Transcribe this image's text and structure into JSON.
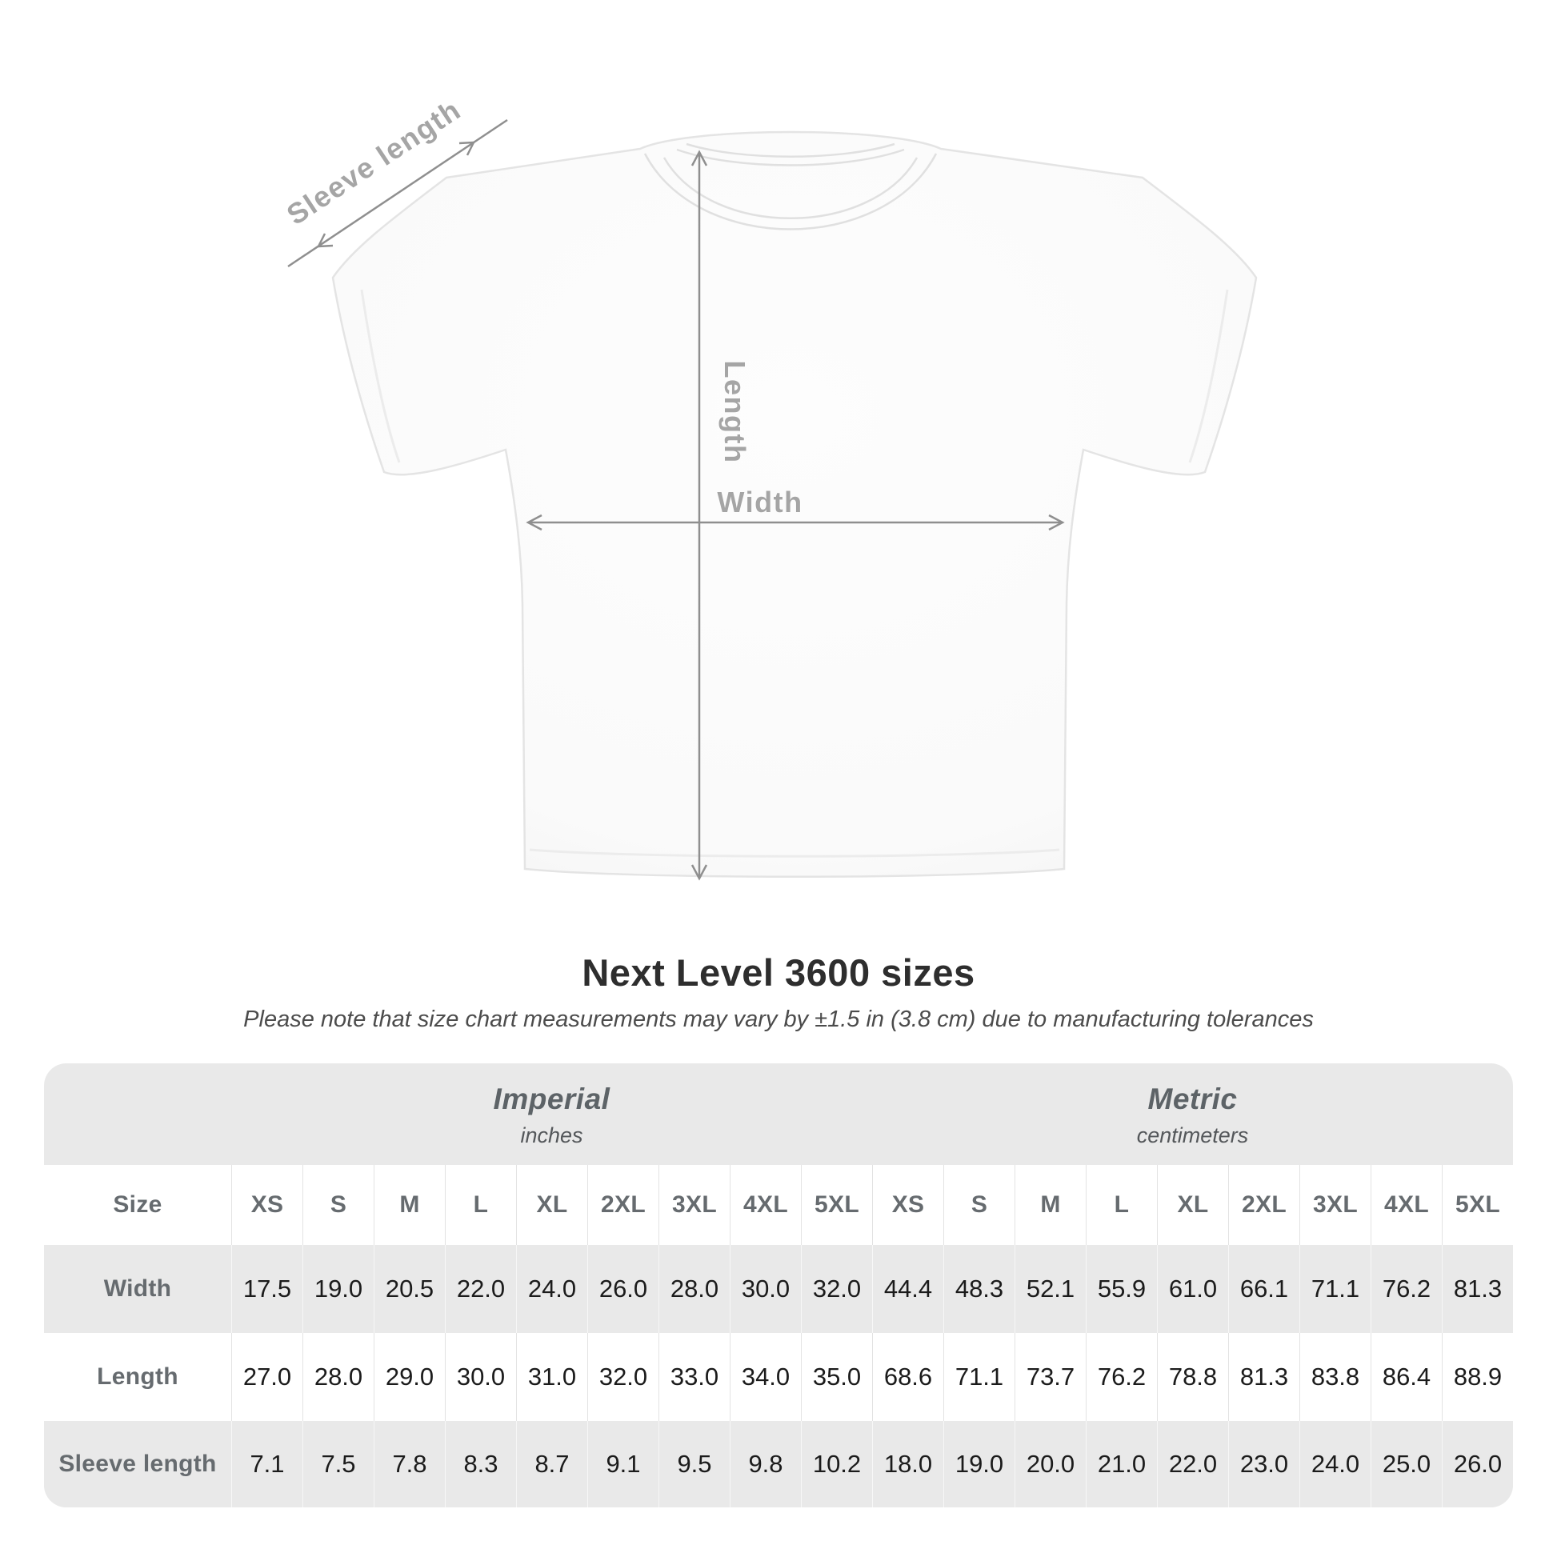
{
  "figure": {
    "sleeve_label": "Sleeve length",
    "length_label": "Length",
    "width_label": "Width"
  },
  "title": "Next Level 3600 sizes",
  "note": "Please note that size chart measurements may vary by ±1.5 in (3.8 cm) due to manufacturing tolerances",
  "table": {
    "size_header_label": "Size",
    "sizes": [
      "XS",
      "S",
      "M",
      "L",
      "XL",
      "2XL",
      "3XL",
      "4XL",
      "5XL"
    ],
    "unit_groups": [
      {
        "name": "Imperial",
        "unit": "inches"
      },
      {
        "name": "Metric",
        "unit": "centimeters"
      }
    ],
    "rows": [
      {
        "label": "Width",
        "imperial": [
          "17.5",
          "19.0",
          "20.5",
          "22.0",
          "24.0",
          "26.0",
          "28.0",
          "30.0",
          "32.0"
        ],
        "metric": [
          "44.4",
          "48.3",
          "52.1",
          "55.9",
          "61.0",
          "66.1",
          "71.1",
          "76.2",
          "81.3"
        ]
      },
      {
        "label": "Length",
        "imperial": [
          "27.0",
          "28.0",
          "29.0",
          "30.0",
          "31.0",
          "32.0",
          "33.0",
          "34.0",
          "35.0"
        ],
        "metric": [
          "68.6",
          "71.1",
          "73.7",
          "76.2",
          "78.8",
          "81.3",
          "83.8",
          "86.4",
          "88.9"
        ]
      },
      {
        "label": "Sleeve length",
        "imperial": [
          "7.1",
          "7.5",
          "7.8",
          "8.3",
          "8.7",
          "9.1",
          "9.5",
          "9.8",
          "10.2"
        ],
        "metric": [
          "18.0",
          "19.0",
          "20.0",
          "21.0",
          "22.0",
          "23.0",
          "24.0",
          "25.0",
          "26.0"
        ]
      }
    ]
  },
  "colors": {
    "title": "#2e2e2e",
    "note": "#4c4c4c",
    "unit-gray": "#5d6367",
    "label-gray": "#666b6f",
    "value": "#1b1b1b",
    "table-bg": "#e9e9e9",
    "row-white": "#ffffff",
    "arrow": "#8f8f8f",
    "figure-label": "#a5a5a5"
  }
}
